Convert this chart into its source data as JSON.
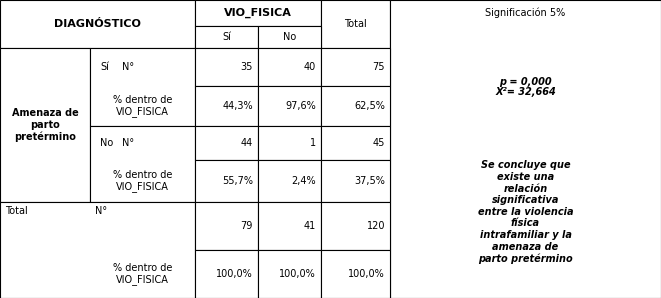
{
  "col_header_1": "DIAGNÓSTICO",
  "col_header_2": "VIO_FISICA",
  "col_header_2a": "Sí",
  "col_header_2b": "No",
  "col_header_3": "Total",
  "col_header_4": "Significación 5%",
  "row_label_main": "Amenaza de\nparto\npretérmino",
  "row_si": "Sí",
  "row_no": "No",
  "row_total": "Total",
  "label_n": "N°",
  "label_pct": "% dentro de\nVIO_FISICA",
  "data": {
    "si_n_si": "35",
    "si_n_no": "40",
    "si_n_total": "75",
    "si_pct_si": "44,3%",
    "si_pct_no": "97,6%",
    "si_pct_total": "62,5%",
    "no_n_si": "44",
    "no_n_no": "1",
    "no_n_total": "45",
    "no_pct_si": "55,7%",
    "no_pct_no": "2,4%",
    "no_pct_total": "37,5%",
    "total_n_si": "79",
    "total_n_no": "41",
    "total_n_total": "120",
    "total_pct_si": "100,0%",
    "total_pct_no": "100,0%",
    "total_pct_total": "100,0%"
  },
  "significance_text_line1": "p = 0,000",
  "significance_text_line2": "X²= 32,664",
  "conclusion_text": "Se concluye que\nexiste una\nrelación\nsignificativa\nentre la violencia\nfísica\nintrafamiliar y la\namenaza de\nparto pretérmino",
  "bg_color": "#ffffff",
  "border_color": "#000000",
  "font_size": 7.0
}
